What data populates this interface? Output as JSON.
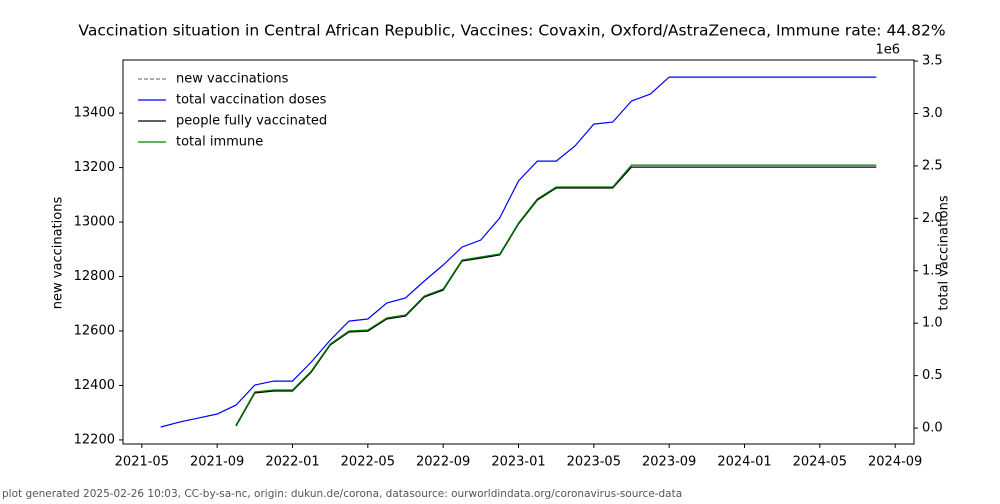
{
  "chart_data": {
    "type": "line",
    "title": "Vaccination situation in Central African Republic, Vaccines: Covaxin, Oxford/AstraZeneca, Immune rate: 44.82%",
    "ylabel": "new vaccinations",
    "y2label": "total vaccinations",
    "y2_offset_label": "1e6",
    "footer": "plot generated 2025-02-26 10:03, CC-by-sa-nc, origin: dukun.de/corona, datasource: ourworldindata.org/coronavirus-source-data",
    "legend": "upper left",
    "x": [
      "2021-06",
      "2021-07",
      "2021-08",
      "2021-09",
      "2021-10",
      "2021-11",
      "2021-12",
      "2022-01",
      "2022-02",
      "2022-03",
      "2022-04",
      "2022-05",
      "2022-06",
      "2022-07",
      "2022-08",
      "2022-09",
      "2022-10",
      "2022-11",
      "2022-12",
      "2023-01",
      "2023-02",
      "2023-03",
      "2023-04",
      "2023-05",
      "2023-06",
      "2023-07",
      "2023-08",
      "2023-09",
      "2023-10",
      "2023-11",
      "2023-12",
      "2024-01",
      "2024-02",
      "2024-03",
      "2024-04",
      "2024-05",
      "2024-06",
      "2024-07",
      "2024-08"
    ],
    "xlim": [
      "2021-04",
      "2024-10"
    ],
    "xticks": [
      "2021-05",
      "2021-09",
      "2022-01",
      "2022-05",
      "2022-09",
      "2023-01",
      "2023-05",
      "2023-09",
      "2024-01",
      "2024-05",
      "2024-09"
    ],
    "ylim": [
      12185,
      13595
    ],
    "yticks": [
      12200,
      12400,
      12600,
      12800,
      13000,
      13200,
      13400
    ],
    "y2lim": [
      -152000,
      3510000
    ],
    "y2ticks": [
      {
        "value": 0,
        "label": "0.0"
      },
      {
        "value": 500000,
        "label": "0.5"
      },
      {
        "value": 1000000,
        "label": "1.0"
      },
      {
        "value": 1500000,
        "label": "1.5"
      },
      {
        "value": 2000000,
        "label": "2.0"
      },
      {
        "value": 2500000,
        "label": "2.5"
      },
      {
        "value": 3000000,
        "label": "3.0"
      },
      {
        "value": 3500000,
        "label": "3.5"
      }
    ],
    "series": [
      {
        "name": "new vaccinations",
        "color": "#808080",
        "dashed": true,
        "values": [
          null,
          null,
          null,
          null,
          null,
          null,
          null,
          null,
          null,
          null,
          null,
          null,
          null,
          null,
          null,
          null,
          null,
          null,
          null,
          null,
          null,
          null,
          null,
          null,
          null,
          null,
          null,
          null,
          null,
          null,
          null,
          null,
          null,
          null,
          null,
          null,
          null,
          null,
          null
        ]
      },
      {
        "name": "total vaccination doses",
        "color": "#0000ff",
        "axis": "y2",
        "values": [
          10000,
          57000,
          95000,
          134000,
          219000,
          410000,
          448000,
          448000,
          630000,
          839000,
          1020000,
          1040000,
          1192000,
          1240000,
          1402000,
          1555000,
          1726000,
          1793000,
          2003000,
          2356000,
          2546000,
          2546000,
          2690000,
          2899000,
          2918000,
          3119000,
          3185000,
          3347000,
          3347000,
          3347000,
          3347000,
          3347000,
          3347000,
          3347000,
          3347000,
          3347000,
          3347000,
          3347000,
          3347000
        ]
      },
      {
        "name": "people fully vaccinated",
        "color": "#000000",
        "axis": "y2",
        "values": [
          null,
          null,
          null,
          null,
          19000,
          334000,
          353000,
          353000,
          534000,
          792000,
          916000,
          925000,
          1040000,
          1068000,
          1249000,
          1316000,
          1593000,
          1621000,
          1650000,
          1946000,
          2174000,
          2289000,
          2289000,
          2289000,
          2289000,
          2489000,
          2489000,
          2489000,
          2489000,
          2489000,
          2489000,
          2489000,
          2489000,
          2489000,
          2489000,
          2489000,
          2489000,
          2489000,
          2489000
        ]
      },
      {
        "name": "total immune",
        "color": "#008000",
        "axis": "y2",
        "values": [
          null,
          null,
          null,
          null,
          29000,
          344000,
          363000,
          363000,
          544000,
          802000,
          926000,
          935000,
          1050000,
          1078000,
          1259000,
          1326000,
          1603000,
          1631000,
          1660000,
          1956000,
          2184000,
          2299000,
          2299000,
          2299000,
          2299000,
          2508000,
          2508000,
          2508000,
          2508000,
          2508000,
          2508000,
          2508000,
          2508000,
          2508000,
          2508000,
          2508000,
          2508000,
          2508000,
          2508000
        ]
      }
    ]
  }
}
